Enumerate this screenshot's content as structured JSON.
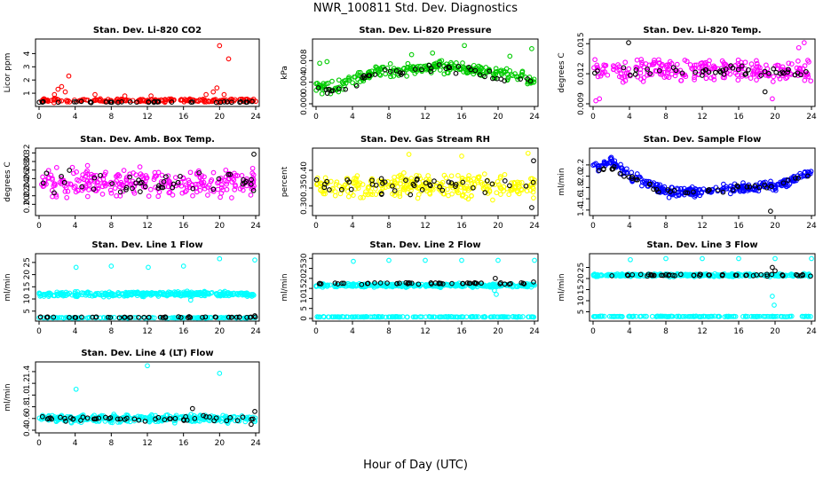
{
  "page": {
    "title": "NWR_100811  Std. Dev. Diagnostics",
    "xlabel": "Hour of Day (UTC)"
  },
  "colors": {
    "red": "#ff0000",
    "green": "#00cc00",
    "magenta": "#ff00ff",
    "yellow": "#ffff00",
    "blue": "#0000ff",
    "cyan": "#00ffff",
    "black": "#000000"
  },
  "chart_data": [
    {
      "type": "scatter",
      "title": "Stan. Dev. Li-820 CO2",
      "ylabel": "Licor ppm",
      "xlim": [
        0,
        24
      ],
      "ylim": [
        0.2,
        4.9
      ],
      "xticks": [
        "0",
        "4",
        "8",
        "12",
        "16",
        "20",
        "24"
      ],
      "yticks": [
        "1",
        "2",
        "3",
        "4"
      ],
      "series": [
        {
          "color": "red",
          "gen": {
            "kind": "noise",
            "base": 0.45,
            "amp": 0.18,
            "n": 180,
            "seed": 11
          },
          "points": [
            [
              2.1,
              1.3
            ],
            [
              2.5,
              1.5
            ],
            [
              2.9,
              1.1
            ],
            [
              3.3,
              2.3
            ],
            [
              1.7,
              0.9
            ],
            [
              6.2,
              0.9
            ],
            [
              9.5,
              0.8
            ],
            [
              12.4,
              0.8
            ],
            [
              18.5,
              0.9
            ],
            [
              19.3,
              1.1
            ],
            [
              19.7,
              1.4
            ],
            [
              20.0,
              4.6
            ],
            [
              21.0,
              3.6
            ],
            [
              20.5,
              0.9
            ]
          ]
        },
        {
          "color": "black",
          "gen": {
            "kind": "noise",
            "base": 0.33,
            "amp": 0.06,
            "n": 40,
            "seed": 12
          }
        }
      ]
    },
    {
      "type": "scatter",
      "title": "Stan. Dev. Li-820 Pressure",
      "ylabel": "kPa",
      "xlim": [
        0,
        24
      ],
      "ylim": [
        0.0,
        0.0115
      ],
      "xticks": [
        "0",
        "4",
        "8",
        "12",
        "16",
        "20",
        "24"
      ],
      "yticks": [
        "0.000",
        "0.004",
        "0.008"
      ],
      "series": [
        {
          "color": "green",
          "gen": {
            "kind": "curve",
            "knots": [
              [
                0,
                0.0032
              ],
              [
                2,
                0.0028
              ],
              [
                4,
                0.0045
              ],
              [
                7,
                0.0062
              ],
              [
                10,
                0.0062
              ],
              [
                13,
                0.007
              ],
              [
                16,
                0.0068
              ],
              [
                19,
                0.006
              ],
              [
                22,
                0.005
              ],
              [
                24,
                0.0042
              ]
            ],
            "amp": 0.0016,
            "n": 260,
            "seed": 21
          },
          "points": [
            [
              0.4,
              0.0075
            ],
            [
              1.2,
              0.0078
            ],
            [
              16.3,
              0.0108
            ],
            [
              21.3,
              0.0088
            ],
            [
              23.7,
              0.0102
            ],
            [
              10.5,
              0.0091
            ],
            [
              12.8,
              0.0094
            ]
          ]
        },
        {
          "color": "black",
          "gen": {
            "kind": "curve",
            "knots": [
              [
                0,
                0.0028
              ],
              [
                2,
                0.0022
              ],
              [
                4,
                0.004
              ],
              [
                7,
                0.0058
              ],
              [
                10,
                0.006
              ],
              [
                13,
                0.0066
              ],
              [
                16,
                0.0062
              ],
              [
                19,
                0.0055
              ],
              [
                22,
                0.0048
              ],
              [
                24,
                0.0038
              ]
            ],
            "amp": 0.0012,
            "n": 45,
            "seed": 22
          }
        }
      ]
    },
    {
      "type": "scatter",
      "title": "Stan. Dev. Li-820 Temp.",
      "ylabel": "degrees C",
      "xlim": [
        0,
        24
      ],
      "ylim": [
        0.009,
        0.0152
      ],
      "xticks": [
        "0",
        "4",
        "8",
        "12",
        "16",
        "20",
        "24"
      ],
      "yticks": [
        "0.009",
        "0.012",
        "0.015"
      ],
      "series": [
        {
          "color": "magenta",
          "gen": {
            "kind": "noise",
            "base": 0.0124,
            "amp": 0.0015,
            "n": 260,
            "seed": 31
          },
          "points": [
            [
              0.3,
              0.0093
            ],
            [
              0.7,
              0.0095
            ],
            [
              19.7,
              0.0095
            ],
            [
              23.2,
              0.0151
            ],
            [
              22.6,
              0.0146
            ]
          ]
        },
        {
          "color": "black",
          "gen": {
            "kind": "noise",
            "base": 0.0123,
            "amp": 0.0009,
            "n": 45,
            "seed": 32
          },
          "points": [
            [
              3.9,
              0.0151
            ],
            [
              18.9,
              0.0102
            ]
          ]
        }
      ]
    },
    {
      "type": "scatter",
      "title": "Stan. Dev. Amb. Box Temp.",
      "ylabel": "degrees C",
      "xlim": [
        0,
        24
      ],
      "ylim": [
        0.18,
        0.325
      ],
      "xticks": [
        "0",
        "4",
        "8",
        "12",
        "16",
        "20",
        "24"
      ],
      "yticks": [
        "0.20",
        "0.22",
        "0.24",
        "0.26",
        "0.28",
        "0.30",
        "0.32"
      ],
      "series": [
        {
          "color": "magenta",
          "gen": {
            "kind": "noise",
            "base": 0.25,
            "amp": 0.045,
            "n": 280,
            "seed": 41
          }
        },
        {
          "color": "black",
          "gen": {
            "kind": "noise",
            "base": 0.25,
            "amp": 0.035,
            "n": 45,
            "seed": 42
          },
          "points": [
            [
              23.8,
              0.317
            ]
          ]
        }
      ]
    },
    {
      "type": "scatter",
      "title": "Stan. Dev. Gas Stream RH",
      "ylabel": "percent",
      "xlim": [
        0,
        24
      ],
      "ylim": [
        0.28,
        0.455
      ],
      "xticks": [
        "0",
        "4",
        "8",
        "12",
        "16",
        "20",
        "24"
      ],
      "yticks": [
        "0.30",
        "0.35",
        "0.40"
      ],
      "series": [
        {
          "color": "yellow",
          "gen": {
            "kind": "noise",
            "base": 0.355,
            "amp": 0.045,
            "n": 300,
            "seed": 51
          },
          "points": [
            [
              10.2,
              0.445
            ],
            [
              23.3,
              0.448
            ],
            [
              16.0,
              0.44
            ]
          ]
        },
        {
          "color": "black",
          "gen": {
            "kind": "noise",
            "base": 0.36,
            "amp": 0.035,
            "n": 45,
            "seed": 52
          },
          "points": [
            [
              23.9,
              0.427
            ],
            [
              23.7,
              0.295
            ]
          ]
        }
      ]
    },
    {
      "type": "scatter",
      "title": "Stan. Dev. Sample Flow",
      "ylabel": "ml/min",
      "xlim": [
        0,
        24
      ],
      "ylim": [
        1.35,
        2.45
      ],
      "xticks": [
        "0",
        "4",
        "8",
        "12",
        "16",
        "20",
        "24"
      ],
      "yticks": [
        "1.4",
        "1.6",
        "1.8",
        "2.0",
        "2.2"
      ],
      "series": [
        {
          "color": "blue",
          "gen": {
            "kind": "curve",
            "knots": [
              [
                0,
                2.15
              ],
              [
                2,
                2.25
              ],
              [
                4,
                2.0
              ],
              [
                6,
                1.85
              ],
              [
                8,
                1.72
              ],
              [
                10,
                1.72
              ],
              [
                12,
                1.74
              ],
              [
                14,
                1.76
              ],
              [
                16,
                1.8
              ],
              [
                18,
                1.82
              ],
              [
                20,
                1.82
              ],
              [
                22,
                1.95
              ],
              [
                24,
                2.05
              ]
            ],
            "amp": 0.12,
            "n": 300,
            "seed": 61
          }
        },
        {
          "color": "black",
          "gen": {
            "kind": "curve",
            "knots": [
              [
                0,
                2.1
              ],
              [
                2,
                2.15
              ],
              [
                4,
                1.98
              ],
              [
                6,
                1.85
              ],
              [
                8,
                1.72
              ],
              [
                10,
                1.72
              ],
              [
                12,
                1.74
              ],
              [
                14,
                1.76
              ],
              [
                16,
                1.8
              ],
              [
                18,
                1.82
              ],
              [
                20,
                1.82
              ],
              [
                22,
                1.95
              ],
              [
                24,
                2.02
              ]
            ],
            "amp": 0.07,
            "n": 45,
            "seed": 62
          },
          "points": [
            [
              19.5,
              1.38
            ]
          ]
        }
      ]
    },
    {
      "type": "scatter",
      "title": "Stan. Dev. Line 1 Flow",
      "ylabel": "ml/min",
      "xlim": [
        0,
        24
      ],
      "ylim": [
        2,
        27.5
      ],
      "xticks": [
        "0",
        "4",
        "8",
        "12",
        "16",
        "20",
        "24"
      ],
      "yticks": [
        "5",
        "10",
        "15",
        "20",
        "25"
      ],
      "series": [
        {
          "color": "cyan",
          "gen": {
            "kind": "noise",
            "base": 12.0,
            "amp": 1.4,
            "n": 320,
            "seed": 71
          },
          "points": [
            [
              4.1,
              23
            ],
            [
              8.0,
              23.5
            ],
            [
              12.1,
              23
            ],
            [
              16.0,
              23.5
            ],
            [
              20.0,
              26.5
            ],
            [
              23.9,
              26
            ],
            [
              16.8,
              9.5
            ]
          ]
        },
        {
          "color": "cyan",
          "gen": {
            "kind": "noise",
            "base": 2.3,
            "amp": 0.25,
            "n": 160,
            "seed": 72
          }
        },
        {
          "color": "black",
          "gen": {
            "kind": "noise",
            "base": 2.5,
            "amp": 0.3,
            "n": 50,
            "seed": 73
          },
          "points": [
            [
              23.9,
              3.1
            ]
          ]
        }
      ]
    },
    {
      "type": "scatter",
      "title": "Stan. Dev. Line 2 Flow",
      "ylabel": "ml/min",
      "xlim": [
        0,
        24
      ],
      "ylim": [
        0,
        31
      ],
      "xticks": [
        "0",
        "4",
        "8",
        "12",
        "16",
        "20",
        "24"
      ],
      "yticks": [
        "0",
        "5",
        "10",
        "15",
        "20",
        "25",
        "30"
      ],
      "series": [
        {
          "color": "cyan",
          "gen": {
            "kind": "noise",
            "base": 16.5,
            "amp": 1.3,
            "n": 320,
            "seed": 81
          },
          "points": [
            [
              4.1,
              28.5
            ],
            [
              8.0,
              29
            ],
            [
              12.0,
              29
            ],
            [
              16.0,
              29
            ],
            [
              20.0,
              29
            ],
            [
              24.0,
              29
            ],
            [
              19.8,
              12
            ],
            [
              19.6,
              14
            ]
          ]
        },
        {
          "color": "cyan",
          "gen": {
            "kind": "noise",
            "base": 0.8,
            "amp": 0.2,
            "n": 160,
            "seed": 82
          }
        },
        {
          "color": "black",
          "gen": {
            "kind": "noise",
            "base": 17.5,
            "amp": 0.6,
            "n": 50,
            "seed": 83
          },
          "points": [
            [
              19.7,
              20
            ],
            [
              23.9,
              18.2
            ]
          ]
        }
      ]
    },
    {
      "type": "scatter",
      "title": "Stan. Dev. Line 3 Flow",
      "ylabel": "ml/min",
      "xlim": [
        0,
        24
      ],
      "ylim": [
        2,
        30
      ],
      "xticks": [
        "0",
        "4",
        "8",
        "12",
        "16",
        "20",
        "24"
      ],
      "yticks": [
        "5",
        "10",
        "15",
        "20",
        "25"
      ],
      "series": [
        {
          "color": "cyan",
          "gen": {
            "kind": "noise",
            "base": 21.5,
            "amp": 0.9,
            "n": 320,
            "seed": 91
          },
          "points": [
            [
              4.1,
              28.5
            ],
            [
              8.0,
              29
            ],
            [
              12.0,
              29
            ],
            [
              16.0,
              29
            ],
            [
              20.0,
              29
            ],
            [
              24.0,
              29
            ],
            [
              19.7,
              12
            ],
            [
              19.9,
              8
            ]
          ]
        },
        {
          "color": "cyan",
          "gen": {
            "kind": "noise",
            "base": 2.9,
            "amp": 0.2,
            "n": 160,
            "seed": 92
          }
        },
        {
          "color": "black",
          "gen": {
            "kind": "noise",
            "base": 21.5,
            "amp": 0.6,
            "n": 50,
            "seed": 93
          },
          "points": [
            [
              19.7,
              25
            ],
            [
              20.0,
              23.5
            ]
          ]
        }
      ]
    },
    {
      "type": "scatter",
      "title": "Stan. Dev. Line 4 (LT) Flow",
      "ylabel": "ml/min",
      "xlim": [
        0,
        24
      ],
      "ylim": [
        0.4,
        1.52
      ],
      "xticks": [
        "0",
        "4",
        "8",
        "12",
        "16",
        "20",
        "24"
      ],
      "yticks": [
        "0.4",
        "0.6",
        "0.8",
        "1.0",
        "1.2",
        "1.4"
      ],
      "series": [
        {
          "color": "cyan",
          "gen": {
            "kind": "noise",
            "base": 0.6,
            "amp": 0.09,
            "n": 320,
            "seed": 101
          },
          "points": [
            [
              4.1,
              1.1
            ],
            [
              12.0,
              1.5
            ],
            [
              20.0,
              1.37
            ]
          ]
        },
        {
          "color": "black",
          "gen": {
            "kind": "noise",
            "base": 0.6,
            "amp": 0.06,
            "n": 50,
            "seed": 102
          },
          "points": [
            [
              17.0,
              0.77
            ],
            [
              23.9,
              0.72
            ],
            [
              23.5,
              0.5
            ]
          ]
        }
      ]
    }
  ]
}
